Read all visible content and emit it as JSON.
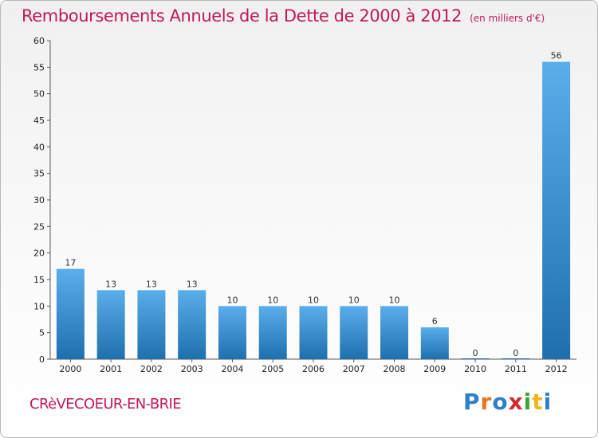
{
  "header": {
    "title": "Remboursements Annuels de la Dette de 2000 à 2012",
    "unit": "(en milliers d'€)"
  },
  "footer": {
    "commune": "CRèVECOEUR-EN-BRIE",
    "logo_letters": [
      "P",
      "r",
      "o",
      "x",
      "i",
      "t",
      "i"
    ],
    "logo_colors": [
      "#2e7fc7",
      "#e8731c",
      "#2e7fc7",
      "#d6282c",
      "#3aa53a",
      "#f3b51b",
      "#2e7fc7"
    ]
  },
  "colors": {
    "bar_top": "#5aaeea",
    "bar_bottom": "#1f6fae",
    "title": "#c2185b"
  },
  "chart_data": {
    "type": "bar",
    "categories": [
      "2000",
      "2001",
      "2002",
      "2003",
      "2004",
      "2005",
      "2006",
      "2007",
      "2008",
      "2009",
      "2010",
      "2011",
      "2012"
    ],
    "values": [
      17,
      13,
      13,
      13,
      10,
      10,
      10,
      10,
      10,
      6,
      0,
      0,
      56
    ],
    "data_labels": [
      "17",
      "13",
      "13",
      "13",
      "10",
      "10",
      "10",
      "10",
      "10",
      "6",
      "0",
      "0",
      "56"
    ],
    "title": "Remboursements Annuels de la Dette de 2000 à 2012",
    "xlabel": "",
    "ylabel": "",
    "ylim": [
      0,
      60
    ],
    "yticks": [
      0,
      5,
      10,
      15,
      20,
      25,
      30,
      35,
      40,
      45,
      50,
      55,
      60
    ],
    "grid": false,
    "legend": "none"
  }
}
